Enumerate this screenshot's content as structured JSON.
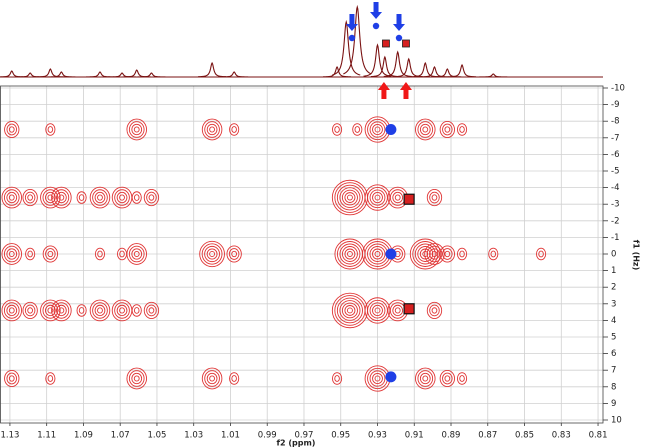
{
  "chart_data": {
    "type": "contour",
    "x_label": "f2 (ppm)",
    "y_label": "f1 (Hz)",
    "xlim": [
      1.1354,
      0.8073
    ],
    "ylim": [
      -10,
      10
    ],
    "xticks": [
      1.13,
      1.11,
      1.09,
      1.07,
      1.05,
      1.03,
      1.01,
      0.99,
      0.97,
      0.95,
      0.93,
      0.91,
      0.89,
      0.87,
      0.85,
      0.83,
      0.81
    ],
    "yticks": [
      -10,
      -9,
      -8,
      -7,
      -6,
      -5,
      -4,
      -3,
      -2,
      -1,
      0,
      1,
      2,
      3,
      4,
      5,
      6,
      7,
      8,
      9,
      10
    ],
    "grid": true,
    "contour_color": "#e03535",
    "projection_color": "#7a1212",
    "peaks": {
      "x": [
        1.129,
        1.129,
        1.129,
        1.129,
        1.129,
        1.119,
        1.119,
        1.119,
        1.108,
        1.108,
        1.108,
        1.108,
        1.108,
        1.102,
        1.102,
        1.091,
        1.091,
        1.081,
        1.081,
        1.081,
        1.069,
        1.069,
        1.069,
        1.061,
        1.061,
        1.061,
        1.061,
        1.061,
        1.053,
        1.053,
        1.02,
        1.02,
        1.02,
        1.008,
        1.008,
        1.008,
        0.952,
        0.952,
        0.945,
        0.945,
        0.945,
        0.941,
        0.93,
        0.93,
        0.93,
        0.93,
        0.93,
        0.919,
        0.919,
        0.919,
        0.904,
        0.904,
        0.904,
        0.899,
        0.899,
        0.899,
        0.892,
        0.892,
        0.892,
        0.884,
        0.884,
        0.884,
        0.867,
        0.841
      ],
      "y": [
        -7.5,
        -3.4,
        0,
        3.4,
        7.5,
        -3.4,
        0,
        3.4,
        -7.5,
        -3.4,
        0,
        3.4,
        7.5,
        -3.4,
        3.4,
        -3.4,
        3.4,
        -3.4,
        0,
        3.4,
        -3.4,
        0,
        3.4,
        -7.5,
        -3.4,
        0,
        3.4,
        7.5,
        -3.4,
        3.4,
        -7.5,
        0,
        7.5,
        -7.5,
        0,
        7.5,
        -7.5,
        7.5,
        -3.4,
        0,
        3.4,
        -7.5,
        -7.5,
        -3.4,
        0,
        3.4,
        7.5,
        -3.4,
        0,
        3.4,
        -7.5,
        0,
        7.5,
        -3.4,
        0,
        3.4,
        -7.5,
        0,
        7.5,
        -7.5,
        0,
        7.5,
        0,
        0
      ],
      "intensity": [
        2,
        3,
        3,
        3,
        2,
        2,
        1,
        2,
        1,
        3,
        2,
        3,
        1,
        3,
        3,
        1,
        1,
        3,
        1,
        3,
        3,
        1,
        3,
        3,
        1,
        3,
        1,
        3,
        2,
        2,
        3,
        4,
        3,
        1,
        2,
        1,
        1,
        1,
        6,
        5,
        6,
        1,
        4,
        4,
        5,
        4,
        4,
        3,
        2,
        3,
        3,
        5,
        3,
        2,
        3,
        2,
        2,
        2,
        2,
        1,
        1,
        1,
        1,
        1
      ]
    },
    "projection": {
      "x": [
        1.129,
        1.119,
        1.108,
        1.102,
        1.081,
        1.069,
        1.061,
        1.053,
        1.02,
        1.008,
        0.952,
        0.947,
        0.941,
        0.93,
        0.926,
        0.919,
        0.913,
        0.904,
        0.899,
        0.892,
        0.884,
        0.867
      ],
      "values": [
        6,
        4,
        8,
        5,
        5,
        4,
        7,
        4,
        14,
        5,
        10,
        55,
        70,
        32,
        20,
        25,
        18,
        14,
        10,
        8,
        12,
        3
      ]
    },
    "markers": [
      {
        "shape": "circle",
        "color": "#1f3fe6",
        "x": 0.9227,
        "y": -7.5
      },
      {
        "shape": "circle",
        "color": "#1f3fe6",
        "x": 0.9227,
        "y": 0
      },
      {
        "shape": "circle",
        "color": "#1f3fe6",
        "x": 0.9227,
        "y": 7.4
      },
      {
        "shape": "square",
        "color": "#d62020",
        "x": 0.9128,
        "y": -3.3
      },
      {
        "shape": "square",
        "color": "#d62020",
        "x": 0.9128,
        "y": 3.3
      }
    ],
    "projection_marks": [
      {
        "shape": "down-arrow-circle",
        "color": "#1f3fe6",
        "x": 0.9439
      },
      {
        "shape": "down-arrow-circle",
        "color": "#1f3fe6",
        "x": 0.9308
      },
      {
        "shape": "down-arrow-circle",
        "color": "#1f3fe6",
        "x": 0.9183
      },
      {
        "shape": "square",
        "color": "#d62020",
        "x": 0.9254
      },
      {
        "shape": "square",
        "color": "#d62020",
        "x": 0.9145
      },
      {
        "shape": "up-arrow",
        "color": "#f01818",
        "x": 0.9265
      },
      {
        "shape": "up-arrow",
        "color": "#f01818",
        "x": 0.9145
      }
    ]
  }
}
